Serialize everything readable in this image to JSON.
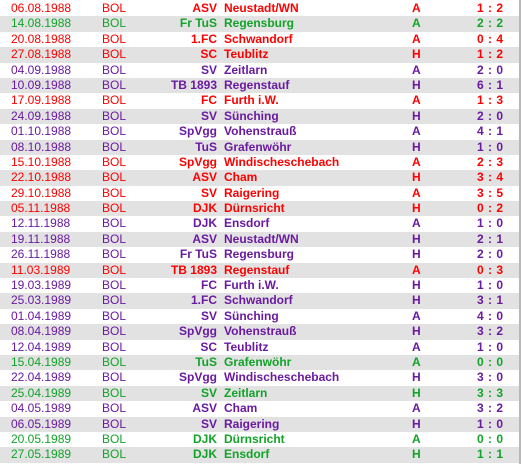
{
  "colors": {
    "loss": "#ff0000",
    "win": "#6a1aa0",
    "draw": "#12a329",
    "row_alt_bg": "#e2e2e2"
  },
  "matches": [
    {
      "date": "06.08.1988",
      "league": "BOL",
      "club_prefix": "ASV",
      "club_name": "Neustadt/WN",
      "venue": "A",
      "score": "1 : 2",
      "result": "loss"
    },
    {
      "date": "14.08.1988",
      "league": "BOL",
      "club_prefix": "Fr TuS",
      "club_name": "Regensburg",
      "venue": "A",
      "score": "2 : 2",
      "result": "draw"
    },
    {
      "date": "20.08.1988",
      "league": "BOL",
      "club_prefix": "1.FC",
      "club_name": "Schwandorf",
      "venue": "A",
      "score": "0 : 4",
      "result": "loss"
    },
    {
      "date": "27.08.1988",
      "league": "BOL",
      "club_prefix": "SC",
      "club_name": "Teublitz",
      "venue": "H",
      "score": "1 : 2",
      "result": "loss"
    },
    {
      "date": "04.09.1988",
      "league": "BOL",
      "club_prefix": "SV",
      "club_name": "Zeitlarn",
      "venue": "A",
      "score": "2 : 0",
      "result": "win"
    },
    {
      "date": "10.09.1988",
      "league": "BOL",
      "club_prefix": "TB 1893",
      "club_name": "Regenstauf",
      "venue": "H",
      "score": "6 : 1",
      "result": "win"
    },
    {
      "date": "17.09.1988",
      "league": "BOL",
      "club_prefix": "FC",
      "club_name": "Furth i.W.",
      "venue": "A",
      "score": "1 : 3",
      "result": "loss"
    },
    {
      "date": "24.09.1988",
      "league": "BOL",
      "club_prefix": "SV",
      "club_name": "Sünching",
      "venue": "H",
      "score": "2 : 0",
      "result": "win"
    },
    {
      "date": "01.10.1988",
      "league": "BOL",
      "club_prefix": "SpVgg",
      "club_name": "Vohenstrauß",
      "venue": "A",
      "score": "4 : 1",
      "result": "win"
    },
    {
      "date": "08.10.1988",
      "league": "BOL",
      "club_prefix": "TuS",
      "club_name": "Grafenwöhr",
      "venue": "H",
      "score": "1 : 0",
      "result": "win"
    },
    {
      "date": "15.10.1988",
      "league": "BOL",
      "club_prefix": "SpVgg",
      "club_name": "Windischeschebach",
      "venue": "A",
      "score": "2 : 3",
      "result": "loss"
    },
    {
      "date": "22.10.1988",
      "league": "BOL",
      "club_prefix": "ASV",
      "club_name": "Cham",
      "venue": "H",
      "score": "3 : 4",
      "result": "loss"
    },
    {
      "date": "29.10.1988",
      "league": "BOL",
      "club_prefix": "SV",
      "club_name": "Raigering",
      "venue": "A",
      "score": "3 : 5",
      "result": "loss"
    },
    {
      "date": "05.11.1988",
      "league": "BOL",
      "club_prefix": "DJK",
      "club_name": "Dürnsricht",
      "venue": "H",
      "score": "0 : 2",
      "result": "loss"
    },
    {
      "date": "12.11.1988",
      "league": "BOL",
      "club_prefix": "DJK",
      "club_name": "Ensdorf",
      "venue": "A",
      "score": "1 : 0",
      "result": "win"
    },
    {
      "date": "19.11.1988",
      "league": "BOL",
      "club_prefix": "ASV",
      "club_name": "Neustadt/WN",
      "venue": "H",
      "score": "2 : 1",
      "result": "win"
    },
    {
      "date": "26.11.1988",
      "league": "BOL",
      "club_prefix": "Fr TuS",
      "club_name": "Regensburg",
      "venue": "H",
      "score": "2 : 0",
      "result": "win"
    },
    {
      "date": "11.03.1989",
      "league": "BOL",
      "club_prefix": "TB 1893",
      "club_name": "Regenstauf",
      "venue": "A",
      "score": "0 : 3",
      "result": "loss"
    },
    {
      "date": "19.03.1989",
      "league": "BOL",
      "club_prefix": "FC",
      "club_name": "Furth i.W.",
      "venue": "H",
      "score": "1 : 0",
      "result": "win"
    },
    {
      "date": "25.03.1989",
      "league": "BOL",
      "club_prefix": "1.FC",
      "club_name": "Schwandorf",
      "venue": "H",
      "score": "3 : 1",
      "result": "win"
    },
    {
      "date": "01.04.1989",
      "league": "BOL",
      "club_prefix": "SV",
      "club_name": "Sünching",
      "venue": "A",
      "score": "4 : 0",
      "result": "win"
    },
    {
      "date": "08.04.1989",
      "league": "BOL",
      "club_prefix": "SpVgg",
      "club_name": "Vohenstrauß",
      "venue": "H",
      "score": "3 : 2",
      "result": "win"
    },
    {
      "date": "12.04.1989",
      "league": "BOL",
      "club_prefix": "SC",
      "club_name": "Teublitz",
      "venue": "A",
      "score": "1 : 0",
      "result": "win"
    },
    {
      "date": "15.04.1989",
      "league": "BOL",
      "club_prefix": "TuS",
      "club_name": "Grafenwöhr",
      "venue": "A",
      "score": "0 : 0",
      "result": "draw"
    },
    {
      "date": "22.04.1989",
      "league": "BOL",
      "club_prefix": "SpVgg",
      "club_name": "Windischeschebach",
      "venue": "H",
      "score": "3 : 0",
      "result": "win"
    },
    {
      "date": "25.04.1989",
      "league": "BOL",
      "club_prefix": "SV",
      "club_name": "Zeitlarn",
      "venue": "H",
      "score": "3 : 3",
      "result": "draw"
    },
    {
      "date": "04.05.1989",
      "league": "BOL",
      "club_prefix": "ASV",
      "club_name": "Cham",
      "venue": "A",
      "score": "3 : 2",
      "result": "win"
    },
    {
      "date": "06.05.1989",
      "league": "BOL",
      "club_prefix": "SV",
      "club_name": "Raigering",
      "venue": "H",
      "score": "1 : 0",
      "result": "win"
    },
    {
      "date": "20.05.1989",
      "league": "BOL",
      "club_prefix": "DJK",
      "club_name": "Dürnsricht",
      "venue": "A",
      "score": "0 : 0",
      "result": "draw"
    },
    {
      "date": "27.05.1989",
      "league": "BOL",
      "club_prefix": "DJK",
      "club_name": "Ensdorf",
      "venue": "H",
      "score": "1 : 1",
      "result": "draw"
    }
  ]
}
